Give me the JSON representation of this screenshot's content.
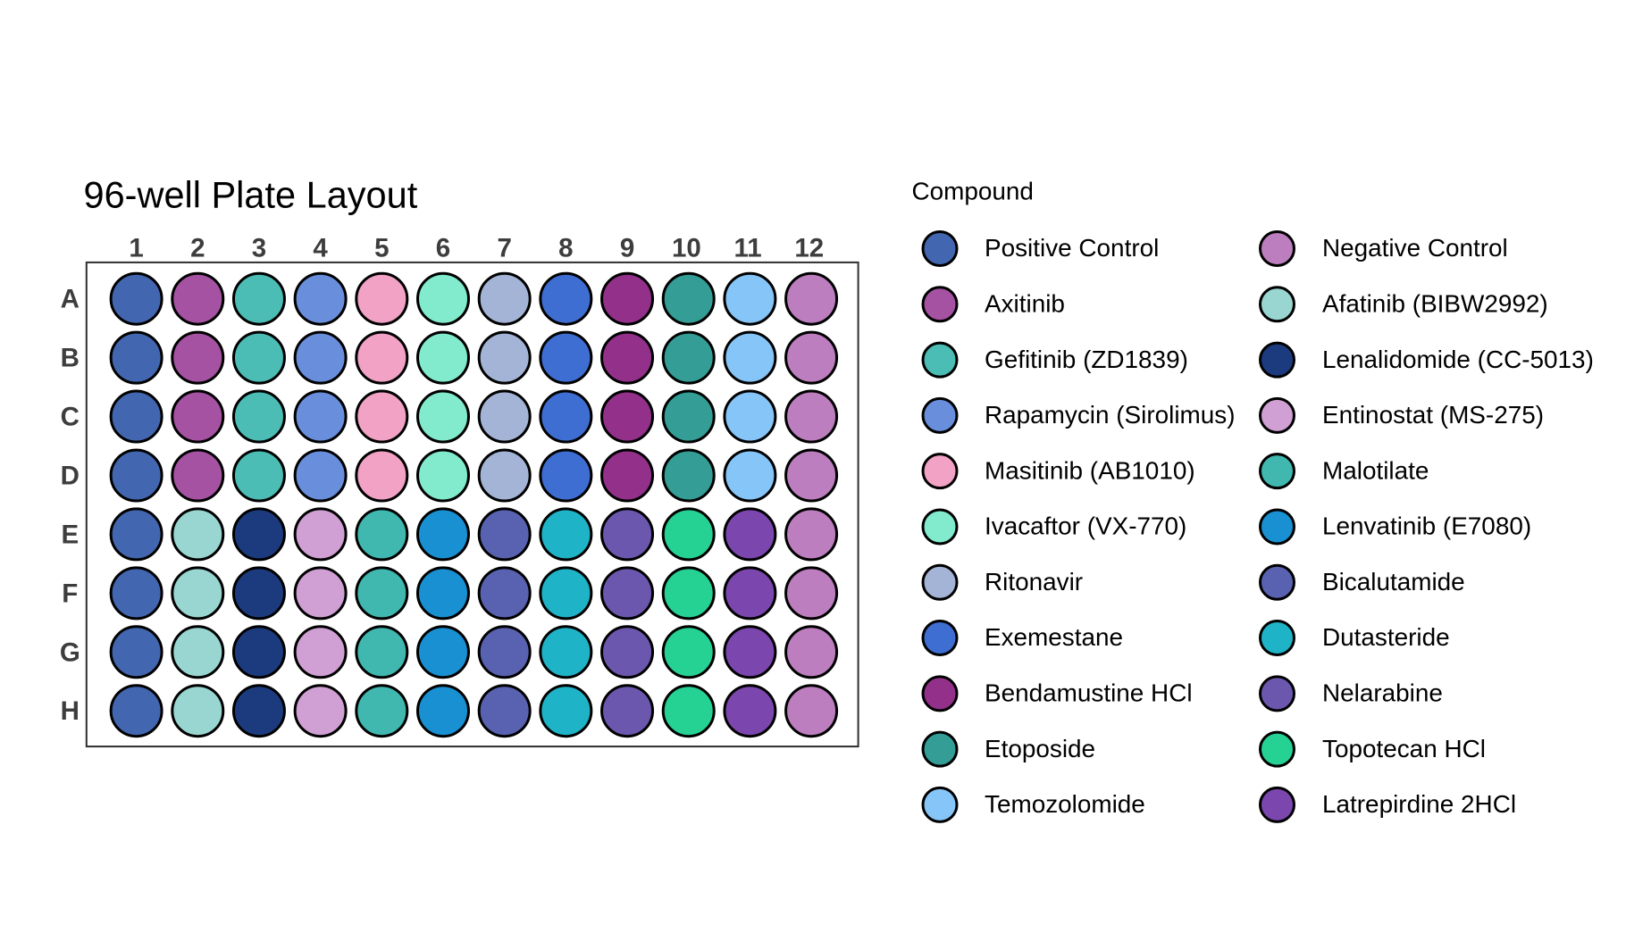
{
  "title": "96-well Plate Layout",
  "legend_title": "Compound",
  "colors": {
    "background": "#ffffff",
    "well_edge": "#000000",
    "legend_edge": "#000000",
    "plate_frame": "#2e2e2e",
    "tick_label": "#3d3d3d",
    "title_text": "#000000",
    "legend_text": "#000000"
  },
  "chart_data": {
    "type": "scatter",
    "title": "96-well Plate Layout",
    "legend_title": "Compound",
    "x_ticks": [
      "1",
      "2",
      "3",
      "4",
      "5",
      "6",
      "7",
      "8",
      "9",
      "10",
      "11",
      "12"
    ],
    "y_ticks": [
      "A",
      "B",
      "C",
      "D",
      "E",
      "F",
      "G",
      "H"
    ],
    "compounds": [
      {
        "id": "positive_control",
        "name": "Positive Control",
        "color": "#4267B0"
      },
      {
        "id": "axitinib",
        "name": "Axitinib",
        "color": "#A552A2"
      },
      {
        "id": "gefitinib",
        "name": "Gefitinib (ZD1839)",
        "color": "#4CBDB5"
      },
      {
        "id": "rapamycin",
        "name": "Rapamycin (Sirolimus)",
        "color": "#688EDC"
      },
      {
        "id": "masitinib",
        "name": "Masitinib (AB1010)",
        "color": "#F1A2C5"
      },
      {
        "id": "ivacaftor",
        "name": "Ivacaftor (VX-770)",
        "color": "#82EBCD"
      },
      {
        "id": "ritonavir",
        "name": "Ritonavir",
        "color": "#A4B4D6"
      },
      {
        "id": "exemestane",
        "name": "Exemestane",
        "color": "#3E6ED2"
      },
      {
        "id": "bendamustine",
        "name": "Bendamustine HCl",
        "color": "#92308A"
      },
      {
        "id": "etoposide",
        "name": "Etoposide",
        "color": "#339D96"
      },
      {
        "id": "temozolomide",
        "name": "Temozolomide",
        "color": "#86C5F8"
      },
      {
        "id": "negative_control",
        "name": "Negative Control",
        "color": "#BC7EBE"
      },
      {
        "id": "afatinib",
        "name": "Afatinib (BIBW2992)",
        "color": "#99D6D1"
      },
      {
        "id": "lenalidomide",
        "name": "Lenalidomide (CC-5013)",
        "color": "#1C3B7E"
      },
      {
        "id": "entinostat",
        "name": "Entinostat (MS-275)",
        "color": "#D0A0D4"
      },
      {
        "id": "malotilate",
        "name": "Malotilate",
        "color": "#40B7AF"
      },
      {
        "id": "lenvatinib",
        "name": "Lenvatinib (E7080)",
        "color": "#1990D1"
      },
      {
        "id": "bicalutamide",
        "name": "Bicalutamide",
        "color": "#5962B0"
      },
      {
        "id": "dutasteride",
        "name": "Dutasteride",
        "color": "#1FB3C7"
      },
      {
        "id": "nelarabine",
        "name": "Nelarabine",
        "color": "#6C57AE"
      },
      {
        "id": "topotecan",
        "name": "Topotecan HCl",
        "color": "#26D194"
      },
      {
        "id": "latrepirdine",
        "name": "Latrepirdine 2HCl",
        "color": "#7B46AD"
      }
    ],
    "row_assignment": {
      "A": [
        "positive_control",
        "axitinib",
        "gefitinib",
        "rapamycin",
        "masitinib",
        "ivacaftor",
        "ritonavir",
        "exemestane",
        "bendamustine",
        "etoposide",
        "temozolomide",
        "negative_control"
      ],
      "B": [
        "positive_control",
        "axitinib",
        "gefitinib",
        "rapamycin",
        "masitinib",
        "ivacaftor",
        "ritonavir",
        "exemestane",
        "bendamustine",
        "etoposide",
        "temozolomide",
        "negative_control"
      ],
      "C": [
        "positive_control",
        "axitinib",
        "gefitinib",
        "rapamycin",
        "masitinib",
        "ivacaftor",
        "ritonavir",
        "exemestane",
        "bendamustine",
        "etoposide",
        "temozolomide",
        "negative_control"
      ],
      "D": [
        "positive_control",
        "axitinib",
        "gefitinib",
        "rapamycin",
        "masitinib",
        "ivacaftor",
        "ritonavir",
        "exemestane",
        "bendamustine",
        "etoposide",
        "temozolomide",
        "negative_control"
      ],
      "E": [
        "positive_control",
        "afatinib",
        "lenalidomide",
        "entinostat",
        "malotilate",
        "lenvatinib",
        "bicalutamide",
        "dutasteride",
        "nelarabine",
        "topotecan",
        "latrepirdine",
        "negative_control"
      ],
      "F": [
        "positive_control",
        "afatinib",
        "lenalidomide",
        "entinostat",
        "malotilate",
        "lenvatinib",
        "bicalutamide",
        "dutasteride",
        "nelarabine",
        "topotecan",
        "latrepirdine",
        "negative_control"
      ],
      "G": [
        "positive_control",
        "afatinib",
        "lenalidomide",
        "entinostat",
        "malotilate",
        "lenvatinib",
        "bicalutamide",
        "dutasteride",
        "nelarabine",
        "topotecan",
        "latrepirdine",
        "negative_control"
      ],
      "H": [
        "positive_control",
        "afatinib",
        "lenalidomide",
        "entinostat",
        "malotilate",
        "lenvatinib",
        "bicalutamide",
        "dutasteride",
        "nelarabine",
        "topotecan",
        "latrepirdine",
        "negative_control"
      ]
    },
    "legend_columns": [
      [
        "positive_control",
        "axitinib",
        "gefitinib",
        "rapamycin",
        "masitinib",
        "ivacaftor",
        "ritonavir",
        "exemestane",
        "bendamustine",
        "etoposide",
        "temozolomide"
      ],
      [
        "negative_control",
        "afatinib",
        "lenalidomide",
        "entinostat",
        "malotilate",
        "lenvatinib",
        "bicalutamide",
        "dutasteride",
        "nelarabine",
        "topotecan",
        "latrepirdine"
      ]
    ]
  }
}
